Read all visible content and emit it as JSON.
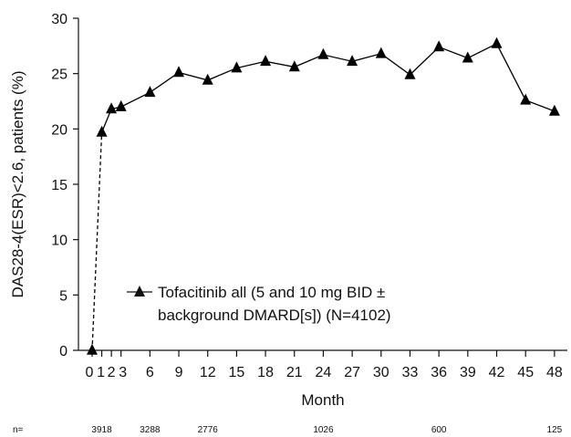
{
  "chart_data": {
    "type": "line",
    "xlabel": "Month",
    "ylabel": "DAS28-4(ESR)<2.6, patients (%)",
    "ylim": [
      0,
      30
    ],
    "yticks": [
      0,
      5,
      10,
      15,
      20,
      25,
      30
    ],
    "xlim": [
      -1,
      49
    ],
    "xticks": [
      0,
      1,
      2,
      3,
      6,
      9,
      12,
      15,
      18,
      21,
      24,
      27,
      30,
      33,
      36,
      39,
      42,
      45,
      48
    ],
    "xtick_labels": [
      "0",
      "1",
      "2",
      "3",
      "6",
      "9",
      "12",
      "15",
      "18",
      "21",
      "24",
      "27",
      "30",
      "33",
      "36",
      "39",
      "42",
      "45",
      "48"
    ],
    "series": [
      {
        "name": "Tofacitinib all (5 and 10 mg BID ± background DMARD[s]) (N=4102)",
        "color": "#000000",
        "marker": "triangle",
        "x": [
          0,
          1,
          2,
          3,
          6,
          9,
          12,
          15,
          18,
          21,
          24,
          27,
          30,
          33,
          36,
          39,
          42,
          45,
          48
        ],
        "y": [
          0,
          19.7,
          21.8,
          22.0,
          23.3,
          25.1,
          24.4,
          25.5,
          26.1,
          25.6,
          26.7,
          26.1,
          26.8,
          24.9,
          27.4,
          26.4,
          27.7,
          22.6,
          21.6
        ],
        "dashed_segment": [
          0,
          1
        ]
      }
    ],
    "legend": {
      "line1": "Tofacitinib all (5 and 10 mg BID ±",
      "line2": "background DMARD[s]) (N=4102)",
      "placement": "lower-left"
    },
    "n_row": {
      "label": "n=",
      "entries": [
        {
          "month": 1,
          "value": "3918"
        },
        {
          "month": 6,
          "value": "3288"
        },
        {
          "month": 12,
          "value": "2776"
        },
        {
          "month": 24,
          "value": "1026"
        },
        {
          "month": 36,
          "value": "600"
        },
        {
          "month": 48,
          "value": "125"
        }
      ]
    }
  }
}
